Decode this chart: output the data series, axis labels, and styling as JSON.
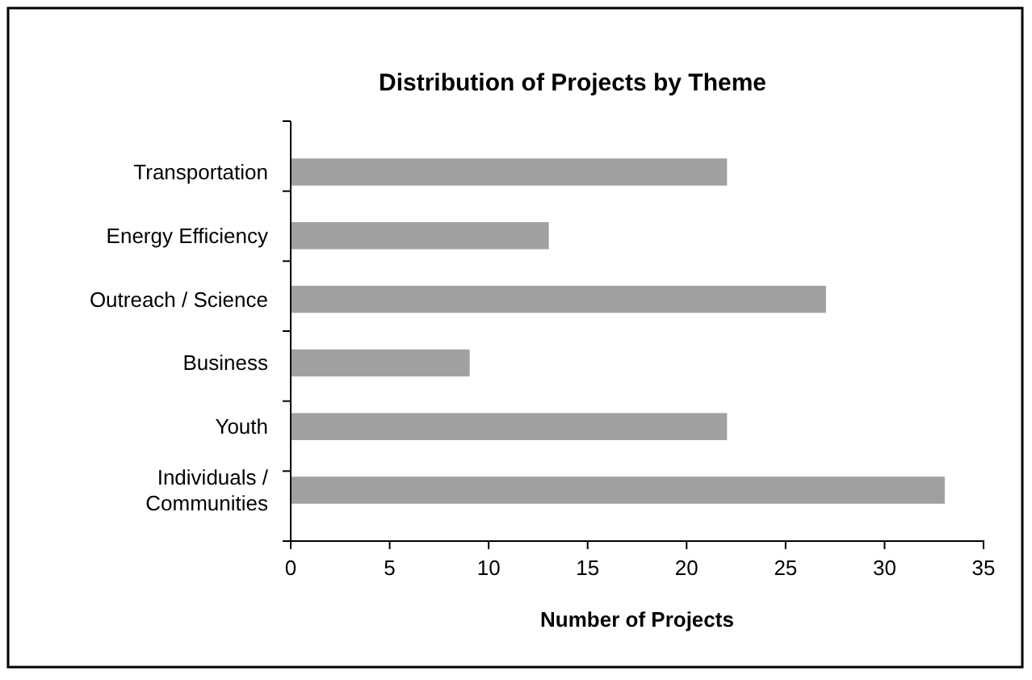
{
  "chart_data": {
    "type": "bar",
    "orientation": "horizontal",
    "title": "Distribution of Projects by Theme",
    "xlabel": "Number of Projects",
    "categories": [
      "Transportation",
      "Energy Efficiency",
      "Outreach / Science",
      "Business",
      "Youth",
      "Individuals / Communities"
    ],
    "values": [
      22,
      13,
      27,
      9,
      22,
      33
    ],
    "color": "#a0a0a0",
    "xlim": [
      0,
      35
    ],
    "xticks": [
      0,
      5,
      10,
      15,
      20,
      25,
      30,
      35
    ],
    "grid": false
  }
}
